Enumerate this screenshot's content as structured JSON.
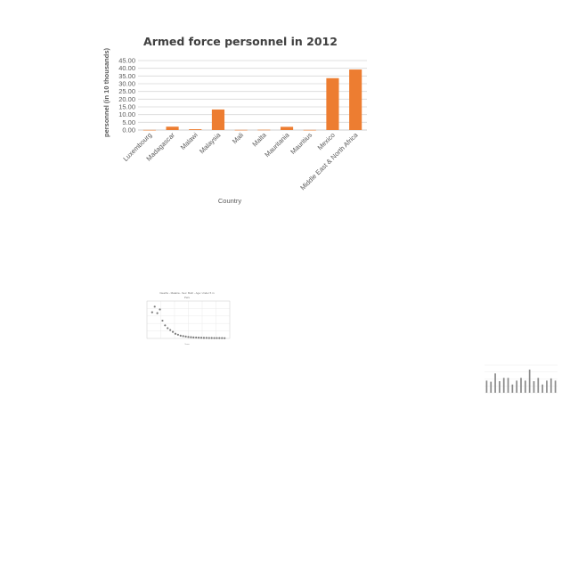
{
  "chart_data": [
    {
      "type": "bar",
      "title": "Armed force personnel in 2012",
      "xlabel": "Country",
      "ylabel": "personnel (in 10 thousands)",
      "categories": [
        "Luxembourg",
        "Madagascar",
        "Malawi",
        "Malaysia",
        "Mali",
        "Malta",
        "Mauritania",
        "Mauritius",
        "Mexico",
        "Middle East & North Africa"
      ],
      "series": [
        {
          "values": [
            0.09,
            2.17,
            0.53,
            13.3,
            0.12,
            0.19,
            2.07,
            0.1,
            33.6,
            39.2
          ]
        }
      ],
      "yticks": [
        "0.00",
        "5.00",
        "10.00",
        "15.00",
        "20.00",
        "25.00",
        "30.00",
        "35.00",
        "40.00",
        "45.00"
      ],
      "ylim": [
        0,
        45
      ],
      "grid": true,
      "colors": {
        "bar": "#ed7d31",
        "grid": "#d9d9d9",
        "axis": "#bfbfbf"
      }
    },
    {
      "type": "scatter",
      "title": "Deaths - Malaria - Sex: Both - Age: Under 5 in Peru",
      "xlabel": "Years",
      "ylabel": "No. of deaths (scaled)",
      "x": [
        1991,
        1992,
        1993,
        1994,
        1995,
        1996,
        1997,
        1998,
        1999,
        2000,
        2001,
        2002,
        2003,
        2004,
        2005,
        2006,
        2007,
        2008,
        2009,
        2010,
        2011,
        2012,
        2013,
        2014,
        2015,
        2016,
        2017,
        2018,
        2019
      ],
      "y": [
        28,
        34,
        27,
        31,
        19,
        14,
        11,
        9,
        7,
        5,
        4,
        3,
        2.5,
        2,
        1.6,
        1.3,
        1.1,
        1,
        0.8,
        0.7,
        0.6,
        0.6,
        0.5,
        0.5,
        0.4,
        0.4,
        0.4,
        0.4,
        0.3
      ],
      "ylim": [
        0,
        40
      ],
      "grid": true
    },
    {
      "type": "bar",
      "title": "",
      "xlabel": "",
      "ylabel": "",
      "values": [
        22,
        20,
        35,
        21,
        27,
        27,
        15,
        22,
        27,
        22,
        42,
        21,
        27,
        15,
        22,
        26,
        22
      ],
      "ylim": [
        0,
        50
      ],
      "grid": true
    }
  ]
}
